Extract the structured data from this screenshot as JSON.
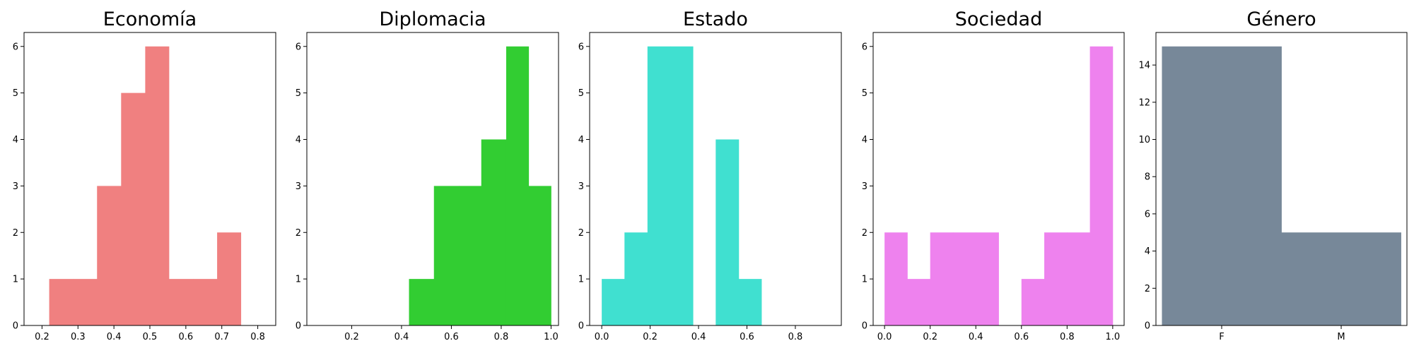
{
  "chart_data": [
    {
      "type": "bar",
      "title": "Economía",
      "color": "#f08080",
      "xlim": [
        0.15,
        0.85
      ],
      "ylim": [
        0,
        6.3
      ],
      "xticks": [
        "0.2",
        "0.3",
        "0.4",
        "0.5",
        "0.6",
        "0.7",
        "0.8"
      ],
      "xtick_values": [
        0.2,
        0.3,
        0.4,
        0.5,
        0.6,
        0.7,
        0.8
      ],
      "yticks": [
        "0",
        "1",
        "2",
        "3",
        "4",
        "5",
        "6"
      ],
      "ytick_values": [
        0,
        1,
        2,
        3,
        4,
        5,
        6
      ],
      "bin_edges": [
        0.22,
        0.287,
        0.353,
        0.42,
        0.487,
        0.553,
        0.62,
        0.687,
        0.753
      ],
      "counts": [
        1,
        1,
        3,
        5,
        6,
        1,
        1,
        2
      ]
    },
    {
      "type": "bar",
      "title": "Diplomacia",
      "color": "#32cd32",
      "xlim": [
        0.02,
        1.03
      ],
      "ylim": [
        0,
        6.3
      ],
      "xticks": [
        "0.2",
        "0.4",
        "0.6",
        "0.8",
        "1.0"
      ],
      "xtick_values": [
        0.2,
        0.4,
        0.6,
        0.8,
        1.0
      ],
      "yticks": [
        "0",
        "1",
        "2",
        "3",
        "4",
        "5",
        "6"
      ],
      "ytick_values": [
        0,
        1,
        2,
        3,
        4,
        5,
        6
      ],
      "bin_edges": [
        0.43,
        0.53,
        0.63,
        0.72,
        0.82,
        0.91,
        1.0
      ],
      "counts": [
        1,
        3,
        3,
        4,
        6,
        3
      ]
    },
    {
      "type": "bar",
      "title": "Estado",
      "color": "#40e0d0",
      "xlim": [
        -0.05,
        0.99
      ],
      "ylim": [
        0,
        6.3
      ],
      "xticks": [
        "0.0",
        "0.2",
        "0.4",
        "0.6",
        "0.8"
      ],
      "xtick_values": [
        0.0,
        0.2,
        0.4,
        0.6,
        0.8
      ],
      "yticks": [
        "0",
        "1",
        "2",
        "3",
        "4",
        "5",
        "6"
      ],
      "ytick_values": [
        0,
        1,
        2,
        3,
        4,
        5,
        6
      ],
      "bin_edges": [
        0.0,
        0.094,
        0.189,
        0.283,
        0.377,
        0.471,
        0.566,
        0.66
      ],
      "counts": [
        1,
        2,
        6,
        6,
        0,
        4,
        1
      ]
    },
    {
      "type": "bar",
      "title": "Sociedad",
      "color": "#ee82ee",
      "xlim": [
        -0.05,
        1.05
      ],
      "ylim": [
        0,
        6.3
      ],
      "xticks": [
        "0.0",
        "0.2",
        "0.4",
        "0.6",
        "0.8",
        "1.0"
      ],
      "xtick_values": [
        0.0,
        0.2,
        0.4,
        0.6,
        0.8,
        1.0
      ],
      "yticks": [
        "0",
        "1",
        "2",
        "3",
        "4",
        "5",
        "6"
      ],
      "ytick_values": [
        0,
        1,
        2,
        3,
        4,
        5,
        6
      ],
      "bin_edges": [
        0.0,
        0.1,
        0.2,
        0.3,
        0.4,
        0.5,
        0.6,
        0.7,
        0.8,
        0.9,
        1.0
      ],
      "counts": [
        2,
        1,
        2,
        2,
        2,
        0,
        1,
        2,
        2,
        6
      ]
    },
    {
      "type": "bar",
      "title": "Género",
      "color": "#778899",
      "xlim": [
        -0.55,
        1.55
      ],
      "ylim": [
        0,
        15.75
      ],
      "xticks": [
        "F",
        "M"
      ],
      "xtick_values": [
        0,
        1
      ],
      "yticks": [
        "0",
        "2",
        "4",
        "6",
        "8",
        "10",
        "12",
        "14"
      ],
      "ytick_values": [
        0,
        2,
        4,
        6,
        8,
        10,
        12,
        14
      ],
      "bin_edges": [
        -0.5,
        0.5,
        1.5
      ],
      "counts": [
        15,
        5
      ]
    }
  ]
}
